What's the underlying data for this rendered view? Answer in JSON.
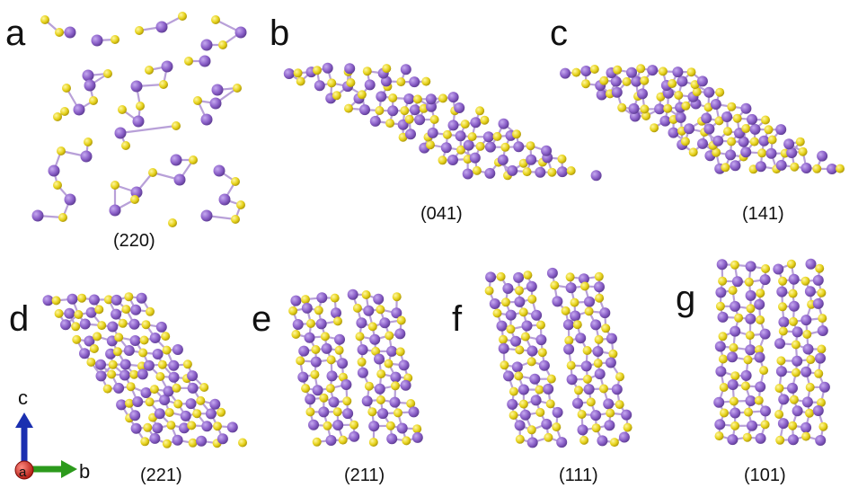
{
  "colors": {
    "atom_purple": "#8a5fc8",
    "atom_yellow": "#e6d21a",
    "bond": "#b8a0d8",
    "axis_c": "#1a2fb0",
    "axis_b": "#2c9a1c",
    "axis_a": "#c8201c"
  },
  "panels": [
    {
      "letter": "a",
      "facet": "(220)",
      "arrangement": "zigzag-chains"
    },
    {
      "letter": "b",
      "facet": "(041)",
      "arrangement": "rhomb-slab"
    },
    {
      "letter": "c",
      "facet": "(141)",
      "arrangement": "rhomb-slab"
    },
    {
      "letter": "d",
      "facet": "(221)",
      "arrangement": "tilted-slab"
    },
    {
      "letter": "e",
      "facet": "(211)",
      "arrangement": "tilted-columns"
    },
    {
      "letter": "f",
      "facet": "(111)",
      "arrangement": "tilted-columns"
    },
    {
      "letter": "g",
      "facet": "(101)",
      "arrangement": "upright-columns"
    }
  ],
  "axes": {
    "c": "c",
    "b": "b",
    "a": "a"
  }
}
